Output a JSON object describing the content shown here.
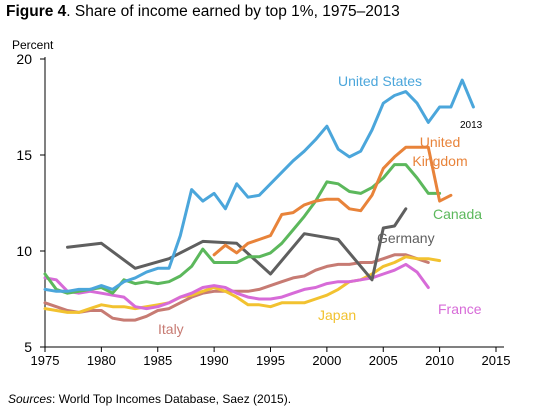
{
  "figure": {
    "label": "Figure 4",
    "title": ". Share of income earned by top 1%, 1975–2013",
    "source_label": "Sources",
    "source_text": ": World Top Incomes Database, Saez (2015)."
  },
  "chart_data": {
    "type": "line",
    "ylabel": "Percent",
    "xlim": [
      1975,
      2015
    ],
    "ylim": [
      5,
      20
    ],
    "x_ticks": [
      1975,
      1980,
      1985,
      1990,
      1995,
      2000,
      2005,
      2010,
      2015
    ],
    "y_ticks": [
      5,
      10,
      15,
      20
    ],
    "grid": false,
    "legend": "inline labels",
    "annotations": [
      {
        "text": "2013"
      }
    ],
    "series": [
      {
        "name": "United States",
        "color": "#4BA6DB",
        "label_lines": [
          "United States"
        ],
        "points": [
          [
            1975,
            8.0
          ],
          [
            1976,
            7.9
          ],
          [
            1977,
            7.9
          ],
          [
            1978,
            8.0
          ],
          [
            1979,
            8.0
          ],
          [
            1980,
            8.2
          ],
          [
            1981,
            8.0
          ],
          [
            1982,
            8.4
          ],
          [
            1983,
            8.6
          ],
          [
            1984,
            8.9
          ],
          [
            1985,
            9.1
          ],
          [
            1986,
            9.1
          ],
          [
            1987,
            10.8
          ],
          [
            1988,
            13.2
          ],
          [
            1989,
            12.6
          ],
          [
            1990,
            13.0
          ],
          [
            1991,
            12.2
          ],
          [
            1992,
            13.5
          ],
          [
            1993,
            12.8
          ],
          [
            1994,
            12.9
          ],
          [
            1995,
            13.5
          ],
          [
            1996,
            14.1
          ],
          [
            1997,
            14.7
          ],
          [
            1998,
            15.2
          ],
          [
            1999,
            15.8
          ],
          [
            2000,
            16.5
          ],
          [
            2001,
            15.3
          ],
          [
            2002,
            14.9
          ],
          [
            2003,
            15.2
          ],
          [
            2004,
            16.3
          ],
          [
            2005,
            17.7
          ],
          [
            2006,
            18.1
          ],
          [
            2007,
            18.3
          ],
          [
            2008,
            17.7
          ],
          [
            2009,
            16.7
          ],
          [
            2010,
            17.5
          ],
          [
            2011,
            17.5
          ],
          [
            2012,
            18.9
          ],
          [
            2013,
            17.5
          ]
        ]
      },
      {
        "name": "United Kingdom",
        "color": "#E8833A",
        "label_lines": [
          "United",
          "Kingdom"
        ],
        "points": [
          [
            1990,
            9.8
          ],
          [
            1991,
            10.3
          ],
          [
            1992,
            9.9
          ],
          [
            1993,
            10.4
          ],
          [
            1994,
            10.6
          ],
          [
            1995,
            10.8
          ],
          [
            1996,
            11.9
          ],
          [
            1997,
            12.0
          ],
          [
            1998,
            12.4
          ],
          [
            1999,
            12.6
          ],
          [
            2000,
            12.7
          ],
          [
            2001,
            12.7
          ],
          [
            2002,
            12.2
          ],
          [
            2003,
            12.1
          ],
          [
            2004,
            12.9
          ],
          [
            2005,
            14.3
          ],
          [
            2006,
            14.9
          ],
          [
            2007,
            15.4
          ],
          [
            2008,
            15.4
          ],
          [
            2009,
            15.4
          ],
          [
            2010,
            12.6
          ],
          [
            2011,
            12.9
          ]
        ]
      },
      {
        "name": "Canada",
        "color": "#5CB85C",
        "label_lines": [
          "Canada"
        ],
        "points": [
          [
            1975,
            8.8
          ],
          [
            1976,
            8.0
          ],
          [
            1977,
            7.8
          ],
          [
            1978,
            7.9
          ],
          [
            1979,
            8.0
          ],
          [
            1980,
            8.1
          ],
          [
            1981,
            7.8
          ],
          [
            1982,
            8.5
          ],
          [
            1983,
            8.3
          ],
          [
            1984,
            8.4
          ],
          [
            1985,
            8.3
          ],
          [
            1986,
            8.4
          ],
          [
            1987,
            8.7
          ],
          [
            1988,
            9.2
          ],
          [
            1989,
            10.1
          ],
          [
            1990,
            9.4
          ],
          [
            1991,
            9.4
          ],
          [
            1992,
            9.4
          ],
          [
            1993,
            9.7
          ],
          [
            1994,
            9.7
          ],
          [
            1995,
            9.9
          ],
          [
            1996,
            10.4
          ],
          [
            1997,
            11.1
          ],
          [
            1998,
            11.8
          ],
          [
            1999,
            12.6
          ],
          [
            2000,
            13.6
          ],
          [
            2001,
            13.5
          ],
          [
            2002,
            13.1
          ],
          [
            2003,
            13.0
          ],
          [
            2004,
            13.3
          ],
          [
            2005,
            13.8
          ],
          [
            2006,
            14.5
          ],
          [
            2007,
            14.5
          ],
          [
            2008,
            13.8
          ],
          [
            2009,
            13.0
          ],
          [
            2010,
            13.0
          ]
        ]
      },
      {
        "name": "Germany",
        "color": "#5F5F5F",
        "label_lines": [
          "Germany"
        ],
        "points": [
          [
            1977,
            10.2
          ],
          [
            1980,
            10.4
          ],
          [
            1983,
            9.1
          ],
          [
            1986,
            9.6
          ],
          [
            1989,
            10.5
          ],
          [
            1992,
            10.4
          ],
          [
            1995,
            8.8
          ],
          [
            1998,
            10.9
          ],
          [
            2001,
            10.6
          ],
          [
            2004,
            8.5
          ],
          [
            2005,
            11.2
          ],
          [
            2006,
            11.3
          ],
          [
            2007,
            12.2
          ]
        ]
      },
      {
        "name": "Italy",
        "color": "#C77B73",
        "label_lines": [
          "Italy"
        ],
        "points": [
          [
            1975,
            7.3
          ],
          [
            1976,
            7.1
          ],
          [
            1977,
            6.9
          ],
          [
            1978,
            6.8
          ],
          [
            1979,
            6.9
          ],
          [
            1980,
            6.9
          ],
          [
            1981,
            6.5
          ],
          [
            1982,
            6.4
          ],
          [
            1983,
            6.4
          ],
          [
            1984,
            6.6
          ],
          [
            1985,
            6.9
          ],
          [
            1986,
            7.0
          ],
          [
            1987,
            7.3
          ],
          [
            1988,
            7.6
          ],
          [
            1989,
            7.8
          ],
          [
            1990,
            7.9
          ],
          [
            1991,
            7.9
          ],
          [
            1992,
            7.9
          ],
          [
            1993,
            7.9
          ],
          [
            1994,
            8.0
          ],
          [
            1995,
            8.2
          ],
          [
            1996,
            8.4
          ],
          [
            1997,
            8.6
          ],
          [
            1998,
            8.7
          ],
          [
            1999,
            9.0
          ],
          [
            2000,
            9.2
          ],
          [
            2001,
            9.3
          ],
          [
            2002,
            9.3
          ],
          [
            2003,
            9.4
          ],
          [
            2004,
            9.4
          ],
          [
            2005,
            9.6
          ],
          [
            2006,
            9.8
          ],
          [
            2007,
            9.8
          ],
          [
            2008,
            9.6
          ],
          [
            2009,
            9.4
          ]
        ]
      },
      {
        "name": "Japan",
        "color": "#F2C230",
        "label_lines": [
          "Japan"
        ],
        "points": [
          [
            1975,
            7.0
          ],
          [
            1976,
            6.9
          ],
          [
            1977,
            6.8
          ],
          [
            1978,
            6.8
          ],
          [
            1979,
            7.0
          ],
          [
            1980,
            7.2
          ],
          [
            1981,
            7.1
          ],
          [
            1982,
            7.1
          ],
          [
            1983,
            7.0
          ],
          [
            1984,
            7.1
          ],
          [
            1985,
            7.2
          ],
          [
            1986,
            7.3
          ],
          [
            1987,
            7.6
          ],
          [
            1988,
            7.7
          ],
          [
            1989,
            7.9
          ],
          [
            1990,
            8.1
          ],
          [
            1991,
            7.9
          ],
          [
            1992,
            7.6
          ],
          [
            1993,
            7.2
          ],
          [
            1994,
            7.2
          ],
          [
            1995,
            7.1
          ],
          [
            1996,
            7.3
          ],
          [
            1997,
            7.3
          ],
          [
            1998,
            7.3
          ],
          [
            1999,
            7.5
          ],
          [
            2000,
            7.7
          ],
          [
            2001,
            8.0
          ],
          [
            2002,
            8.4
          ],
          [
            2003,
            8.5
          ],
          [
            2004,
            8.8
          ],
          [
            2005,
            9.2
          ],
          [
            2006,
            9.4
          ],
          [
            2007,
            9.7
          ],
          [
            2008,
            9.6
          ],
          [
            2009,
            9.6
          ],
          [
            2010,
            9.5
          ]
        ]
      },
      {
        "name": "France",
        "color": "#D76BD8",
        "label_lines": [
          "France"
        ],
        "points": [
          [
            1975,
            8.6
          ],
          [
            1976,
            8.5
          ],
          [
            1977,
            7.9
          ],
          [
            1978,
            7.8
          ],
          [
            1979,
            7.9
          ],
          [
            1980,
            7.8
          ],
          [
            1981,
            7.7
          ],
          [
            1982,
            7.6
          ],
          [
            1983,
            7.1
          ],
          [
            1984,
            7.0
          ],
          [
            1985,
            7.1
          ],
          [
            1986,
            7.3
          ],
          [
            1987,
            7.6
          ],
          [
            1988,
            7.8
          ],
          [
            1989,
            8.1
          ],
          [
            1990,
            8.2
          ],
          [
            1991,
            8.1
          ],
          [
            1992,
            7.8
          ],
          [
            1993,
            7.6
          ],
          [
            1994,
            7.5
          ],
          [
            1995,
            7.5
          ],
          [
            1996,
            7.6
          ],
          [
            1997,
            7.8
          ],
          [
            1998,
            8.0
          ],
          [
            1999,
            8.1
          ],
          [
            2000,
            8.3
          ],
          [
            2001,
            8.4
          ],
          [
            2002,
            8.4
          ],
          [
            2003,
            8.5
          ],
          [
            2004,
            8.6
          ],
          [
            2005,
            8.8
          ],
          [
            2006,
            9.0
          ],
          [
            2007,
            9.3
          ],
          [
            2008,
            8.9
          ],
          [
            2009,
            8.1
          ]
        ]
      }
    ]
  }
}
